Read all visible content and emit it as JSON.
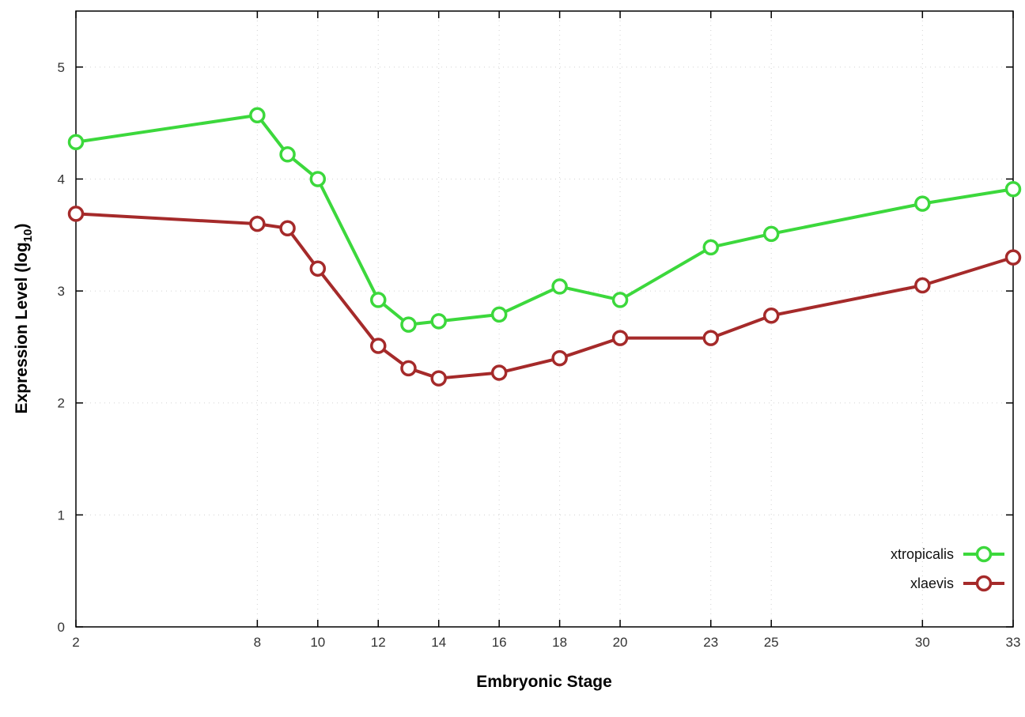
{
  "chart_data": {
    "type": "line",
    "title": "",
    "xlabel": "Embryonic Stage",
    "ylabel": "Expression Level (log10)",
    "xlim": [
      2,
      33
    ],
    "ylim": [
      0,
      5.5
    ],
    "xticks": [
      2,
      8,
      10,
      12,
      14,
      16,
      18,
      20,
      23,
      25,
      30,
      33
    ],
    "yticks": [
      0,
      1,
      2,
      3,
      4,
      5
    ],
    "grid": true,
    "legend_position": "inside-right",
    "marker": "open-circle",
    "x": [
      2,
      8,
      9,
      10,
      12,
      13,
      14,
      16,
      18,
      20,
      23,
      25,
      30,
      33
    ],
    "series": [
      {
        "name": "xtropicalis",
        "color": "#3cd83c",
        "values": [
          4.33,
          4.57,
          4.22,
          4.0,
          2.92,
          2.7,
          2.73,
          2.79,
          3.04,
          2.92,
          3.39,
          3.51,
          3.78,
          3.91
        ]
      },
      {
        "name": "xlaevis",
        "color": "#a52a2a",
        "values": [
          3.69,
          3.6,
          3.56,
          3.2,
          2.51,
          2.31,
          2.22,
          2.27,
          2.4,
          2.58,
          2.58,
          2.78,
          3.05,
          3.3
        ]
      }
    ]
  },
  "labels": {
    "x_axis": "Embryonic Stage",
    "y_axis_main": "Expression Level (log",
    "y_axis_sub": "10",
    "y_axis_close": ")"
  },
  "legend": {
    "entries": [
      {
        "label": "xtropicalis"
      },
      {
        "label": "xlaevis"
      }
    ]
  }
}
